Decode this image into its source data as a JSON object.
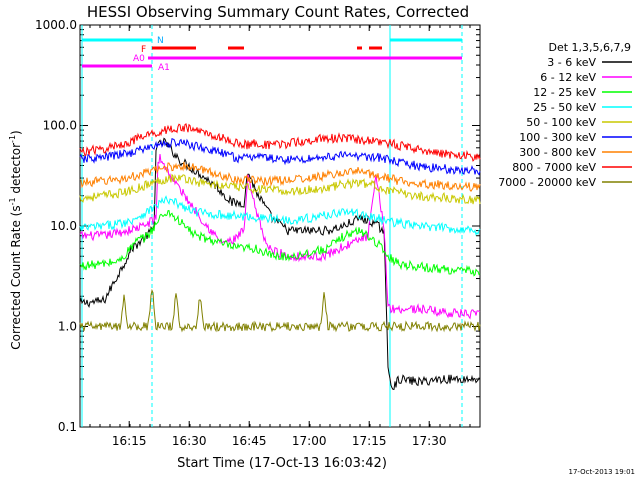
{
  "chart_data": {
    "type": "line",
    "title": "HESSI Observing Summary Count Rates, Corrected",
    "xlabel": "Start Time (17-Oct-13 16:03:42)",
    "ylabel": "Corrected Count Rate (s⁻¹ detector⁻¹)",
    "ylabel_main": "Corrected Count Rate (s",
    "ylabel_sup1": "-1",
    "ylabel_mid": " detector",
    "ylabel_sup2": "-1",
    "ylabel_end": ")",
    "y_scale": "log",
    "ylim": [
      0.1,
      1000.0
    ],
    "xlim_minutes": [
      0,
      100
    ],
    "x_ticks": [
      {
        "t": 12.3,
        "label": "16:15"
      },
      {
        "t": 27.3,
        "label": "16:30"
      },
      {
        "t": 42.3,
        "label": "16:45"
      },
      {
        "t": 57.3,
        "label": "17:00"
      },
      {
        "t": 72.3,
        "label": "17:15"
      },
      {
        "t": 87.3,
        "label": "17:30"
      }
    ],
    "y_ticks": [
      {
        "v": 1000.0,
        "label": "1000.0"
      },
      {
        "v": 100.0,
        "label": "100.0"
      },
      {
        "v": 10.0,
        "label": "10.0"
      },
      {
        "v": 1.0,
        "label": "1.0"
      },
      {
        "v": 0.1,
        "label": "0.1"
      }
    ],
    "legend_title": "Det 1,3,5,6,7,9",
    "legend_position": "right",
    "series": [
      {
        "name": "3 - 6 keV",
        "color": "#000000",
        "points": [
          [
            0,
            1.7
          ],
          [
            6,
            1.8
          ],
          [
            9,
            3.0
          ],
          [
            13,
            6.0
          ],
          [
            16,
            7.5
          ],
          [
            18.5,
            9.5
          ],
          [
            19,
            60
          ],
          [
            21,
            70
          ],
          [
            25,
            45
          ],
          [
            30,
            33
          ],
          [
            34,
            25
          ],
          [
            38,
            17
          ],
          [
            41,
            17
          ],
          [
            42,
            35
          ],
          [
            44,
            22
          ],
          [
            48,
            12
          ],
          [
            52,
            9
          ],
          [
            58,
            9
          ],
          [
            62,
            9
          ],
          [
            66,
            10
          ],
          [
            70,
            12
          ],
          [
            73,
            11
          ],
          [
            76,
            9
          ],
          [
            77,
            0.4
          ],
          [
            78,
            0.25
          ],
          [
            80,
            0.3
          ],
          [
            85,
            0.28
          ],
          [
            90,
            0.3
          ],
          [
            100,
            0.3
          ]
        ]
      },
      {
        "name": "6 - 12 keV",
        "color": "#ff00ff",
        "points": [
          [
            0,
            8
          ],
          [
            6,
            8
          ],
          [
            12,
            9
          ],
          [
            16,
            10
          ],
          [
            19,
            12
          ],
          [
            19.5,
            42
          ],
          [
            20,
            48
          ],
          [
            23,
            30
          ],
          [
            27,
            18
          ],
          [
            31,
            11
          ],
          [
            35,
            7
          ],
          [
            38,
            7
          ],
          [
            41,
            9
          ],
          [
            42,
            30
          ],
          [
            44,
            14
          ],
          [
            47,
            6
          ],
          [
            52,
            5
          ],
          [
            57,
            5
          ],
          [
            61,
            5
          ],
          [
            65,
            6
          ],
          [
            69,
            7
          ],
          [
            72,
            8
          ],
          [
            74,
            30
          ],
          [
            76,
            10
          ],
          [
            77,
            1.6
          ],
          [
            78,
            1.5
          ],
          [
            85,
            1.5
          ],
          [
            90,
            1.4
          ],
          [
            100,
            1.3
          ]
        ]
      },
      {
        "name": "12 - 25 keV",
        "color": "#00ff00",
        "points": [
          [
            0,
            4
          ],
          [
            6,
            4.2
          ],
          [
            10,
            4.5
          ],
          [
            14,
            7
          ],
          [
            17,
            8
          ],
          [
            20,
            12
          ],
          [
            22,
            14
          ],
          [
            25,
            11
          ],
          [
            29,
            8
          ],
          [
            34,
            7
          ],
          [
            39,
            6
          ],
          [
            44,
            6
          ],
          [
            48,
            5
          ],
          [
            53,
            5
          ],
          [
            58,
            5.5
          ],
          [
            62,
            6
          ],
          [
            66,
            8
          ],
          [
            70,
            9
          ],
          [
            74,
            7
          ],
          [
            77,
            5
          ],
          [
            80,
            4.2
          ],
          [
            88,
            3.8
          ],
          [
            95,
            3.6
          ],
          [
            100,
            3.5
          ]
        ]
      },
      {
        "name": "25 - 50 keV",
        "color": "#00ffff",
        "points": [
          [
            0,
            9.5
          ],
          [
            6,
            10
          ],
          [
            12,
            11
          ],
          [
            17,
            14
          ],
          [
            21,
            18
          ],
          [
            24,
            17
          ],
          [
            28,
            14
          ],
          [
            34,
            13
          ],
          [
            40,
            12.5
          ],
          [
            46,
            12
          ],
          [
            52,
            11.5
          ],
          [
            58,
            12
          ],
          [
            62,
            13
          ],
          [
            66,
            14
          ],
          [
            70,
            13
          ],
          [
            74,
            12
          ],
          [
            78,
            11
          ],
          [
            84,
            10
          ],
          [
            92,
            9.5
          ],
          [
            100,
            9
          ]
        ]
      },
      {
        "name": "50 - 100 keV",
        "color": "#c8c800",
        "points": [
          [
            0,
            19
          ],
          [
            6,
            20
          ],
          [
            12,
            22
          ],
          [
            17,
            26
          ],
          [
            22,
            30
          ],
          [
            26,
            30
          ],
          [
            30,
            27
          ],
          [
            36,
            25
          ],
          [
            42,
            24
          ],
          [
            46,
            23
          ],
          [
            52,
            22
          ],
          [
            58,
            23
          ],
          [
            62,
            24
          ],
          [
            66,
            26
          ],
          [
            70,
            27
          ],
          [
            74,
            25
          ],
          [
            78,
            22
          ],
          [
            84,
            20
          ],
          [
            92,
            19
          ],
          [
            100,
            18
          ]
        ]
      },
      {
        "name": "100 - 300 keV",
        "color": "#0000ff",
        "points": [
          [
            0,
            46
          ],
          [
            6,
            48
          ],
          [
            12,
            53
          ],
          [
            17,
            60
          ],
          [
            21,
            66
          ],
          [
            24,
            68
          ],
          [
            27,
            65
          ],
          [
            32,
            58
          ],
          [
            36,
            52
          ],
          [
            40,
            47
          ],
          [
            42,
            47
          ],
          [
            44,
            51
          ],
          [
            46,
            48
          ],
          [
            50,
            46
          ],
          [
            55,
            46
          ],
          [
            60,
            48
          ],
          [
            65,
            50
          ],
          [
            70,
            50
          ],
          [
            75,
            48
          ],
          [
            80,
            42
          ],
          [
            88,
            38
          ],
          [
            95,
            36
          ],
          [
            100,
            35
          ]
        ]
      },
      {
        "name": "300 - 800 keV",
        "color": "#ff8000",
        "points": [
          [
            0,
            27
          ],
          [
            6,
            28
          ],
          [
            12,
            30
          ],
          [
            17,
            34
          ],
          [
            21,
            38
          ],
          [
            25,
            40
          ],
          [
            30,
            37
          ],
          [
            35,
            32
          ],
          [
            40,
            29
          ],
          [
            46,
            28
          ],
          [
            52,
            29
          ],
          [
            58,
            30
          ],
          [
            62,
            32
          ],
          [
            66,
            34
          ],
          [
            70,
            35
          ],
          [
            74,
            32
          ],
          [
            80,
            28
          ],
          [
            88,
            26
          ],
          [
            95,
            25
          ],
          [
            100,
            24
          ]
        ]
      },
      {
        "name": "800 - 7000 keV",
        "color": "#ff0000",
        "points": [
          [
            0,
            55
          ],
          [
            6,
            58
          ],
          [
            12,
            68
          ],
          [
            17,
            80
          ],
          [
            22,
            92
          ],
          [
            26,
            95
          ],
          [
            30,
            88
          ],
          [
            35,
            76
          ],
          [
            40,
            65
          ],
          [
            42,
            64
          ],
          [
            44,
            68
          ],
          [
            47,
            63
          ],
          [
            52,
            66
          ],
          [
            58,
            72
          ],
          [
            62,
            75
          ],
          [
            66,
            74
          ],
          [
            70,
            72
          ],
          [
            75,
            70
          ],
          [
            80,
            63
          ],
          [
            88,
            55
          ],
          [
            95,
            50
          ],
          [
            100,
            48
          ]
        ]
      },
      {
        "name": "7000 - 20000 keV",
        "color": "#808000",
        "points": [
          [
            0,
            1.0
          ],
          [
            10,
            1.0
          ],
          [
            11,
            2.0
          ],
          [
            12,
            1.0
          ],
          [
            17,
            1.0
          ],
          [
            18,
            2.5
          ],
          [
            19,
            1.0
          ],
          [
            23,
            1.0
          ],
          [
            24,
            2.0
          ],
          [
            25,
            1.0
          ],
          [
            29,
            1.0
          ],
          [
            30,
            2.0
          ],
          [
            31,
            1.0
          ],
          [
            60,
            1.0
          ],
          [
            61,
            2.0
          ],
          [
            62,
            1.0
          ],
          [
            100,
            1.0
          ]
        ]
      }
    ],
    "attenuator_label_A0": "A0",
    "attenuator_label_A1": "A1",
    "flag_N": "N",
    "flag_F": "F",
    "date_stamp": "17-Oct-2013 19:01",
    "colors": {
      "frame": "#000000",
      "eclipse": "#00ffff",
      "attenuator": "#ff00ff",
      "flare_flag": "#ff0000"
    }
  }
}
